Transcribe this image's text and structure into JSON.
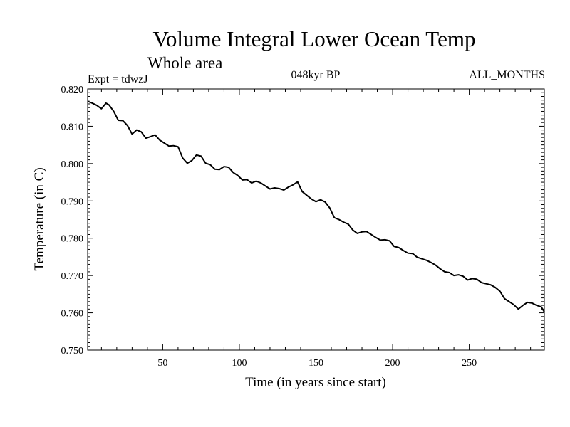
{
  "chart_data": {
    "type": "line",
    "title": "Volume Integral Lower Ocean Temp",
    "subtitle": "Whole area",
    "annotations": {
      "left": "Expt = tdwzJ",
      "center": "048kyr BP",
      "right": "ALL_MONTHS"
    },
    "xlabel": "Time (in years since start)",
    "ylabel": "Temperature (in C)",
    "xlim": [
      1,
      299
    ],
    "ylim": [
      0.75,
      0.82
    ],
    "x_ticks": [
      50,
      100,
      150,
      200,
      250
    ],
    "x_tick_labels": [
      "50",
      "100",
      "150",
      "200",
      "250"
    ],
    "y_ticks": [
      0.75,
      0.76,
      0.77,
      0.78,
      0.79,
      0.8,
      0.81,
      0.82
    ],
    "y_tick_labels": [
      "0.750",
      "0.760",
      "0.770",
      "0.780",
      "0.790",
      "0.800",
      "0.810",
      "0.820"
    ],
    "grid": false,
    "series": [
      {
        "color": "#000000",
        "x": [
          1,
          4,
          7,
          10,
          13,
          15,
          18,
          21,
          24,
          27,
          30,
          33,
          36,
          39,
          42,
          45,
          48,
          51,
          54,
          57,
          60,
          63,
          66,
          69,
          72,
          75,
          78,
          81,
          84,
          87,
          90,
          93,
          96,
          99,
          102,
          105,
          108,
          111,
          114,
          117,
          120,
          123,
          126,
          129,
          132,
          135,
          138,
          141,
          144,
          147,
          150,
          153,
          156,
          159,
          162,
          165,
          168,
          171,
          174,
          177,
          180,
          183,
          186,
          189,
          192,
          195,
          198,
          201,
          204,
          207,
          210,
          213,
          216,
          219,
          222,
          225,
          228,
          231,
          234,
          237,
          240,
          243,
          246,
          249,
          252,
          255,
          258,
          261,
          264,
          267,
          270,
          273,
          276,
          279,
          282,
          285,
          288,
          291,
          294,
          297,
          299
        ],
        "y": [
          0.8167,
          0.8162,
          0.8156,
          0.8147,
          0.8162,
          0.8157,
          0.814,
          0.8116,
          0.8115,
          0.8102,
          0.8079,
          0.809,
          0.8085,
          0.8068,
          0.8072,
          0.8077,
          0.8063,
          0.8055,
          0.8047,
          0.8048,
          0.8045,
          0.8015,
          0.8001,
          0.8008,
          0.8023,
          0.802,
          0.8001,
          0.7997,
          0.7985,
          0.7984,
          0.7992,
          0.799,
          0.7976,
          0.7968,
          0.7956,
          0.7957,
          0.7948,
          0.7953,
          0.7948,
          0.794,
          0.7932,
          0.7935,
          0.7933,
          0.7929,
          0.7937,
          0.7943,
          0.7951,
          0.7925,
          0.7915,
          0.7905,
          0.7898,
          0.7903,
          0.7897,
          0.7881,
          0.7855,
          0.785,
          0.7843,
          0.7838,
          0.7822,
          0.7813,
          0.7817,
          0.7818,
          0.781,
          0.7802,
          0.7795,
          0.7796,
          0.7793,
          0.7778,
          0.7775,
          0.7767,
          0.776,
          0.7759,
          0.7749,
          0.7745,
          0.7741,
          0.7735,
          0.7728,
          0.7718,
          0.771,
          0.7708,
          0.77,
          0.7702,
          0.7698,
          0.7688,
          0.7692,
          0.769,
          0.7681,
          0.7678,
          0.7675,
          0.7668,
          0.7658,
          0.7638,
          0.763,
          0.7622,
          0.761,
          0.762,
          0.7628,
          0.7626,
          0.762,
          0.7616,
          0.7602
        ]
      }
    ]
  }
}
